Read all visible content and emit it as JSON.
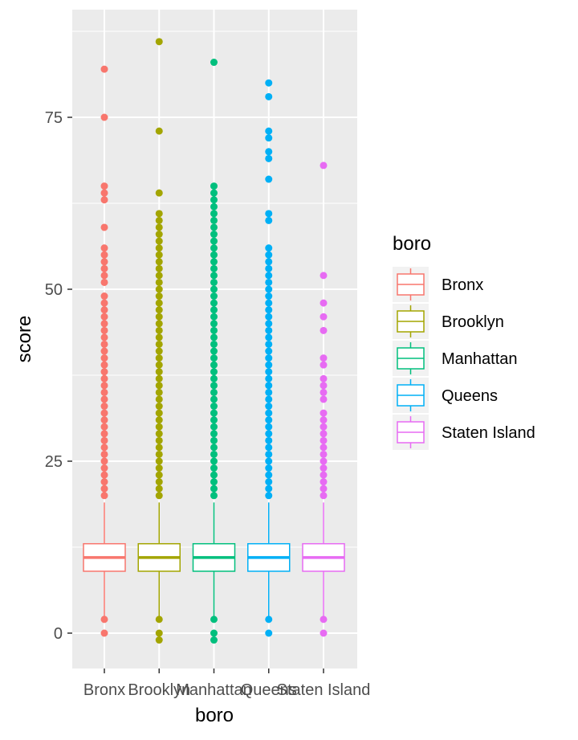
{
  "chart_data": {
    "type": "box",
    "xlabel": "boro",
    "ylabel": "score",
    "ylim": [
      -5,
      90
    ],
    "yticks": [
      0,
      25,
      50,
      75
    ],
    "grid": true,
    "legend_title": "boro",
    "legend_position": "right",
    "categories": [
      "Bronx",
      "Brooklyn",
      "Manhattan",
      "Queens",
      "Staten Island"
    ],
    "colors": [
      "#F8766D",
      "#A3A500",
      "#00BF7D",
      "#00B0F6",
      "#E76BF3"
    ],
    "series": [
      {
        "name": "Bronx",
        "whisker_low": 2,
        "q1": 9,
        "median": 11,
        "q3": 13,
        "whisker_high": 19,
        "outliers": [
          0,
          2,
          20,
          21,
          22,
          23,
          24,
          25,
          26,
          27,
          28,
          29,
          30,
          31,
          32,
          33,
          34,
          35,
          36,
          37,
          38,
          39,
          40,
          41,
          42,
          43,
          44,
          45,
          46,
          47,
          48,
          49,
          51,
          52,
          53,
          54,
          55,
          56,
          59,
          63,
          64,
          65,
          75,
          82
        ]
      },
      {
        "name": "Brooklyn",
        "whisker_low": 2,
        "q1": 9,
        "median": 11,
        "q3": 13,
        "whisker_high": 19,
        "outliers": [
          -1,
          0,
          2,
          20,
          21,
          22,
          23,
          24,
          25,
          26,
          27,
          28,
          29,
          30,
          31,
          32,
          33,
          34,
          35,
          36,
          37,
          38,
          39,
          40,
          41,
          42,
          43,
          44,
          45,
          46,
          47,
          48,
          49,
          50,
          51,
          52,
          53,
          54,
          55,
          56,
          57,
          58,
          59,
          60,
          61,
          64,
          73,
          86
        ]
      },
      {
        "name": "Manhattan",
        "whisker_low": 2,
        "q1": 9,
        "median": 11,
        "q3": 13,
        "whisker_high": 19,
        "outliers": [
          -1,
          0,
          2,
          20,
          21,
          22,
          23,
          24,
          25,
          26,
          27,
          28,
          29,
          30,
          31,
          32,
          33,
          34,
          35,
          36,
          37,
          38,
          39,
          40,
          41,
          42,
          43,
          44,
          45,
          46,
          47,
          48,
          49,
          50,
          51,
          52,
          53,
          54,
          55,
          56,
          57,
          58,
          59,
          60,
          61,
          62,
          63,
          64,
          65,
          83
        ]
      },
      {
        "name": "Queens",
        "whisker_low": 2,
        "q1": 9,
        "median": 11,
        "q3": 13,
        "whisker_high": 19,
        "outliers": [
          0,
          2,
          20,
          21,
          22,
          23,
          24,
          25,
          26,
          27,
          28,
          29,
          30,
          31,
          32,
          33,
          34,
          35,
          36,
          37,
          38,
          39,
          40,
          41,
          42,
          43,
          44,
          45,
          46,
          47,
          48,
          49,
          50,
          51,
          52,
          53,
          54,
          55,
          56,
          60,
          61,
          66,
          69,
          70,
          72,
          73,
          78,
          80
        ]
      },
      {
        "name": "Staten Island",
        "whisker_low": 2,
        "q1": 9,
        "median": 11,
        "q3": 13,
        "whisker_high": 19,
        "outliers": [
          0,
          2,
          20,
          21,
          22,
          23,
          24,
          25,
          26,
          27,
          28,
          29,
          30,
          31,
          32,
          34,
          35,
          36,
          37,
          39,
          40,
          44,
          46,
          48,
          52,
          68
        ]
      }
    ]
  }
}
